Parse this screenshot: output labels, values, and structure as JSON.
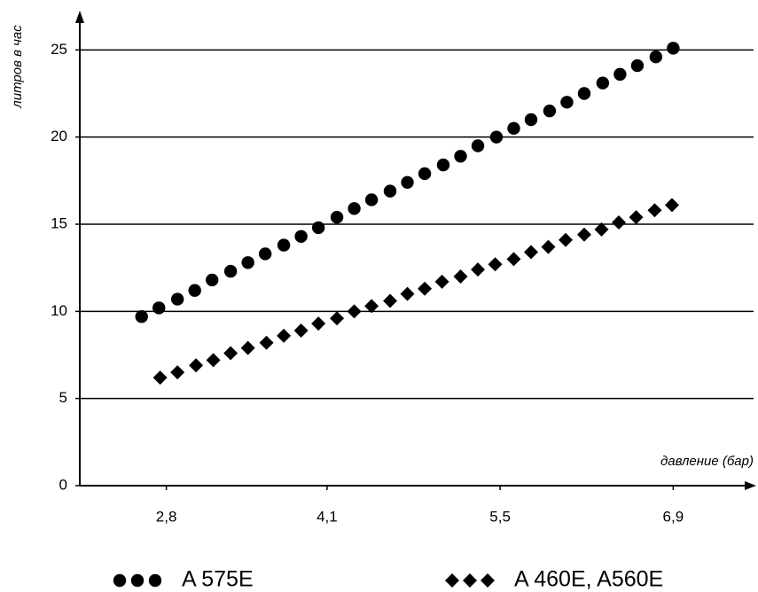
{
  "chart_data": {
    "type": "scatter",
    "x_label": "давление (бар)",
    "y_label": "литров в час",
    "xlim": [
      2.1,
      7.55
    ],
    "ylim": [
      0,
      27
    ],
    "xticks": [
      {
        "value": 2.8,
        "label": "2,8"
      },
      {
        "value": 4.1,
        "label": "4,1"
      },
      {
        "value": 5.5,
        "label": "5,5"
      },
      {
        "value": 6.9,
        "label": "6,9"
      }
    ],
    "yticks": [
      0,
      5,
      10,
      15,
      20,
      25
    ],
    "grid": true,
    "legend": "bottom",
    "series": [
      {
        "name": "A 575E",
        "color": "#000000",
        "marker": "circle",
        "x": [
          2.6,
          2.74,
          2.89,
          3.03,
          3.17,
          3.32,
          3.46,
          3.6,
          3.75,
          3.89,
          4.03,
          4.18,
          4.32,
          4.46,
          4.61,
          4.75,
          4.89,
          5.04,
          5.18,
          5.32,
          5.47,
          5.61,
          5.75,
          5.9,
          6.04,
          6.18,
          6.33,
          6.47,
          6.61,
          6.76,
          6.9
        ],
        "values": [
          9.7,
          10.2,
          10.7,
          11.2,
          11.8,
          12.3,
          12.8,
          13.3,
          13.8,
          14.3,
          14.8,
          15.4,
          15.9,
          16.4,
          16.9,
          17.4,
          17.9,
          18.4,
          18.9,
          19.5,
          20.0,
          20.5,
          21.0,
          21.5,
          22.0,
          22.5,
          23.1,
          23.6,
          24.1,
          24.6,
          25.1
        ]
      },
      {
        "name": "A 460E, A560E",
        "color": "#000000",
        "marker": "diamond",
        "x": [
          2.75,
          2.89,
          3.04,
          3.18,
          3.32,
          3.46,
          3.61,
          3.75,
          3.89,
          4.03,
          4.18,
          4.32,
          4.46,
          4.61,
          4.75,
          4.89,
          5.03,
          5.18,
          5.32,
          5.46,
          5.61,
          5.75,
          5.89,
          6.03,
          6.18,
          6.32,
          6.46,
          6.6,
          6.75,
          6.89
        ],
        "values": [
          6.2,
          6.5,
          6.9,
          7.2,
          7.6,
          7.9,
          8.2,
          8.6,
          8.9,
          9.3,
          9.6,
          10.0,
          10.3,
          10.6,
          11.0,
          11.3,
          11.7,
          12.0,
          12.4,
          12.7,
          13.0,
          13.4,
          13.7,
          14.1,
          14.4,
          14.7,
          15.1,
          15.4,
          15.8,
          16.1
        ]
      }
    ]
  }
}
